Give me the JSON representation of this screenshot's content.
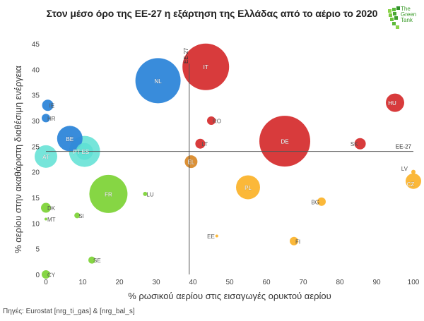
{
  "header": {
    "title": "Στον μέσο όρο της ΕΕ-27 η εξάρτηση της Ελλάδας από το αέριο το 2020",
    "logo": {
      "line1": "The",
      "line2": "Green",
      "line3": "Tank",
      "color": "#3c9c2c"
    }
  },
  "footer": {
    "source": "Πηγές: Eurostat [nrg_ti_gas] & [nrg_bal_s]"
  },
  "chart_data": {
    "type": "scatter",
    "subtype": "bubble",
    "title": "Στον μέσο όρο της ΕΕ-27 η εξάρτηση της Ελλάδας από το αέριο το 2020",
    "xlabel": "% ρωσικού αερίου στις εισαγωγές ορυκτού αερίου",
    "ylabel": "% αερίου στην ακαθάριστη διαθέσιμη ενέργεια",
    "xlim": [
      0,
      100
    ],
    "ylim": [
      0,
      45
    ],
    "xticks": [
      0,
      10,
      20,
      30,
      40,
      50,
      60,
      70,
      80,
      90,
      100
    ],
    "yticks": [
      0,
      5,
      10,
      15,
      20,
      25,
      30,
      35,
      40,
      45
    ],
    "grid": false,
    "reference_lines": [
      {
        "axis": "x",
        "value": 39,
        "label": "ΕΕ-27"
      },
      {
        "axis": "y",
        "value": 24,
        "label": "ΕΕ-27"
      }
    ],
    "colors": {
      "blue": "#2e86d9",
      "teal": "#5ee0d4",
      "red": "#d63031",
      "orange": "#d98a2b",
      "yellow": "#fbb42e",
      "green": "#7fd43a"
    },
    "points": [
      {
        "label": "IE",
        "x": 0.5,
        "y": 33,
        "size": 8,
        "color": "blue"
      },
      {
        "label": "HR",
        "x": 0,
        "y": 30.5,
        "size": 6,
        "color": "blue"
      },
      {
        "label": "BE",
        "x": 6.5,
        "y": 26.5,
        "size": 18,
        "color": "blue"
      },
      {
        "label": "NL",
        "x": 30.5,
        "y": 37.8,
        "size": 32,
        "color": "blue"
      },
      {
        "label": "AT",
        "x": 0,
        "y": 23,
        "size": 16,
        "color": "teal"
      },
      {
        "label": "PT",
        "x": 10.5,
        "y": 24,
        "size": 12,
        "color": "teal"
      },
      {
        "label": "ES",
        "x": 10.5,
        "y": 24,
        "size": 22,
        "color": "teal"
      },
      {
        "label": "IT",
        "x": 43.5,
        "y": 40.5,
        "size": 33,
        "color": "red"
      },
      {
        "label": "RO",
        "x": 45,
        "y": 30,
        "size": 6,
        "color": "red"
      },
      {
        "label": "LT",
        "x": 42,
        "y": 25.5,
        "size": 7,
        "color": "red"
      },
      {
        "label": "DE",
        "x": 65,
        "y": 26,
        "size": 36,
        "color": "red"
      },
      {
        "label": "SK",
        "x": 85.5,
        "y": 25.5,
        "size": 8,
        "color": "red"
      },
      {
        "label": "HU",
        "x": 95,
        "y": 33.5,
        "size": 13,
        "color": "red"
      },
      {
        "label": "EL",
        "x": 39.5,
        "y": 22,
        "size": 9,
        "color": "orange"
      },
      {
        "label": "PL",
        "x": 55,
        "y": 17,
        "size": 17,
        "color": "yellow"
      },
      {
        "label": "LV",
        "x": 100,
        "y": 20,
        "size": 3,
        "color": "yellow"
      },
      {
        "label": "CZ",
        "x": 100,
        "y": 18.2,
        "size": 11,
        "color": "yellow"
      },
      {
        "label": "BG",
        "x": 75,
        "y": 14.2,
        "size": 6,
        "color": "yellow"
      },
      {
        "label": "EE",
        "x": 46.5,
        "y": 7.5,
        "size": 2,
        "color": "yellow"
      },
      {
        "label": "FI",
        "x": 67.5,
        "y": 6.5,
        "size": 6,
        "color": "yellow"
      },
      {
        "label": "FR",
        "x": 17,
        "y": 15.7,
        "size": 27,
        "color": "green"
      },
      {
        "label": "LU",
        "x": 27,
        "y": 15.7,
        "size": 3,
        "color": "green"
      },
      {
        "label": "DK",
        "x": 0,
        "y": 13,
        "size": 7,
        "color": "green"
      },
      {
        "label": "SI",
        "x": 8.5,
        "y": 11.5,
        "size": 4,
        "color": "green"
      },
      {
        "label": "MT",
        "x": 0,
        "y": 10.8,
        "size": 2,
        "color": "green"
      },
      {
        "label": "SE",
        "x": 12.5,
        "y": 2.8,
        "size": 5,
        "color": "green"
      },
      {
        "label": "CY",
        "x": 0,
        "y": 0,
        "size": 6,
        "color": "green"
      }
    ]
  }
}
